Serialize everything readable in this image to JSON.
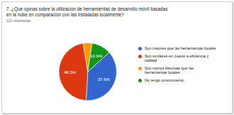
{
  "chart_data": {
    "type": "pie",
    "title": "7. ¿Qué opinas sobre la utilización de herramientas de desarrollo móvil basadas en la nube en comparación con las instaladas localmente?",
    "subtitle": "101 respuestas",
    "categories": [
      "Son mejores que las herramientas locales",
      "Son similares en cuanto a eficiencia y calidad",
      "Son menos efectivas que las herramientas locales",
      "No tengo conocimiento"
    ],
    "values": [
      37.6,
      46.5,
      5.0,
      10.9
    ],
    "value_labels": [
      "37.6%",
      "46.5%",
      null,
      "10.9%"
    ],
    "colors": [
      "#3366cc",
      "#dc3912",
      "#ff9900",
      "#109618"
    ],
    "data_labels": true,
    "legend": "right"
  }
}
